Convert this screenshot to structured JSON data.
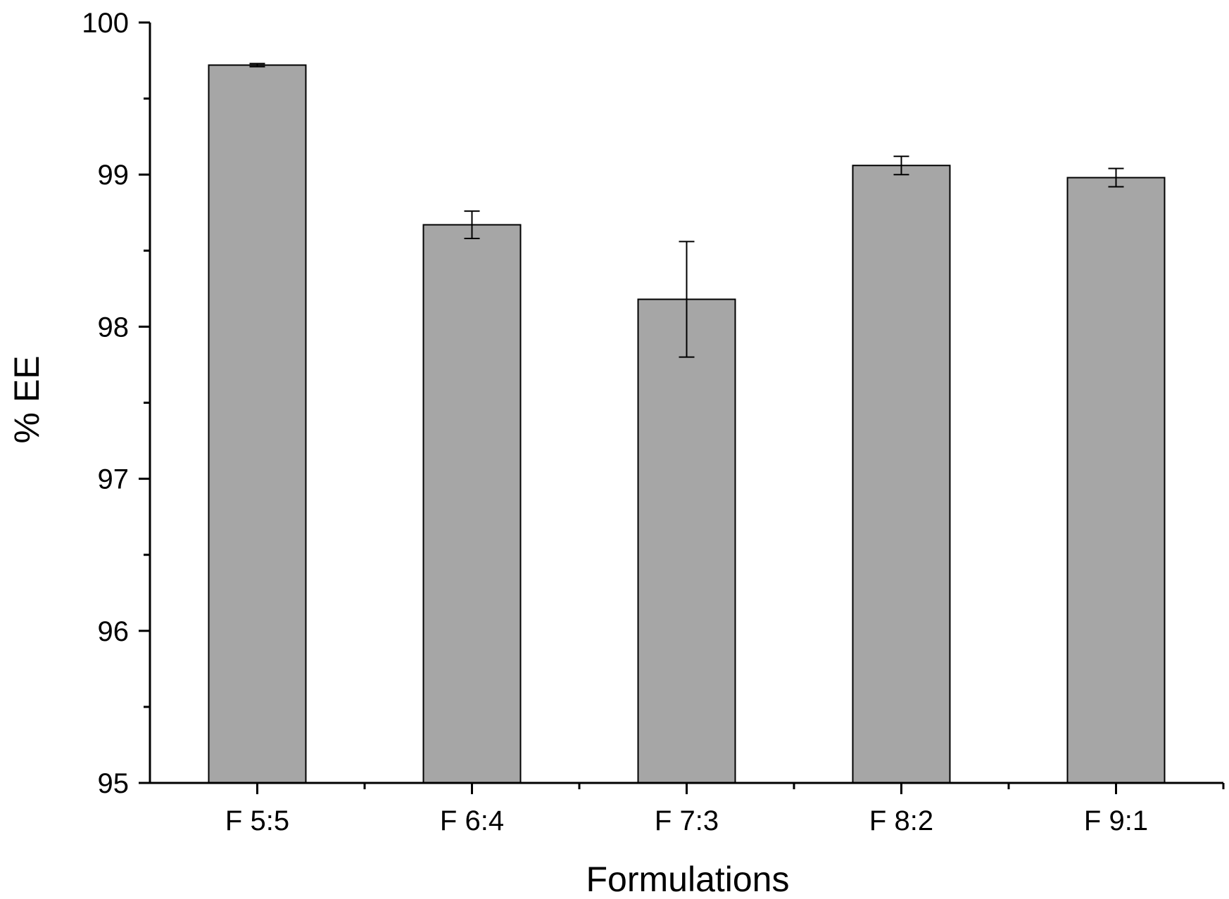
{
  "chart_data": {
    "type": "bar",
    "categories": [
      "F 5:5",
      "F 6:4",
      "F 7:3",
      "F 8:2",
      "F 9:1"
    ],
    "values": [
      99.72,
      98.67,
      98.18,
      99.06,
      98.98
    ],
    "errors": [
      0.01,
      0.09,
      0.38,
      0.06,
      0.06
    ],
    "xlabel": "Formulations",
    "ylabel": "% EE",
    "ylim": [
      95,
      100
    ],
    "yticks": [
      "95",
      "96",
      "97",
      "98",
      "99",
      "100"
    ],
    "bar_color": "#a6a6a6",
    "grid": false,
    "legend": "none"
  }
}
